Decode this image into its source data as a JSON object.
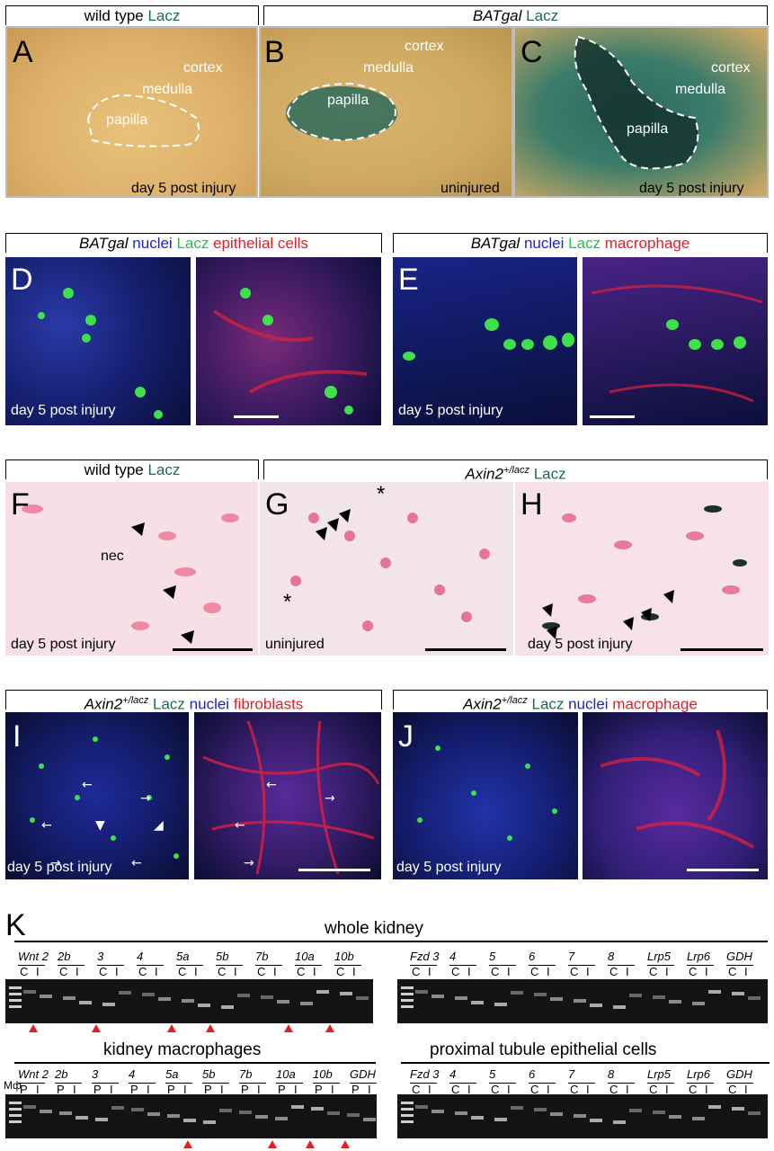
{
  "row1": {
    "header_left": {
      "prefix": "wild type",
      "stain": "Lacz"
    },
    "header_right": {
      "line": "BATgal",
      "stain": "Lacz"
    },
    "panels": [
      {
        "letter": "A",
        "cortex": "cortex",
        "medulla": "medulla",
        "papilla": "papilla",
        "caption": "day 5 post injury"
      },
      {
        "letter": "B",
        "cortex": "cortex",
        "medulla": "medulla",
        "papilla": "papilla",
        "caption": "uninjured"
      },
      {
        "letter": "C",
        "cortex": "cortex",
        "medulla": "medulla",
        "papilla": "papilla",
        "caption": "day 5 post injury"
      }
    ]
  },
  "row2": {
    "left": {
      "line": "BATgal",
      "c1": "nuclei",
      "c2": "Lacz",
      "c3": "epithelial cells",
      "letter": "D",
      "caption": "day 5 post injury"
    },
    "right": {
      "line": "BATgal",
      "c1": "nuclei",
      "c2": "Lacz",
      "c3": "macrophage",
      "letter": "E",
      "caption": "day 5 post injury"
    }
  },
  "row3": {
    "header_left": {
      "prefix": "wild type",
      "stain": "Lacz"
    },
    "header_right": {
      "line": "Axin2",
      "sup": "+/lacz",
      "stain": "Lacz"
    },
    "panels": [
      {
        "letter": "F",
        "label": "nec",
        "caption": "day 5 post injury"
      },
      {
        "letter": "G",
        "caption": "uninjured",
        "star": "*"
      },
      {
        "letter": "H",
        "caption": "day 5 post injury"
      }
    ]
  },
  "row4": {
    "left": {
      "line": "Axin2",
      "sup": "+/lacz",
      "c1": "Lacz",
      "c2": "nuclei",
      "c3": "fibroblasts",
      "letter": "I",
      "caption": "day 5 post injury"
    },
    "right": {
      "line": "Axin2",
      "sup": "+/lacz",
      "c1": "Lacz",
      "c2": "nuclei",
      "c3": "macrophage",
      "letter": "J",
      "caption": "day 5 post injury"
    }
  },
  "gels": {
    "letter": "K",
    "whole_kidney": "whole kidney",
    "kidney_macrophages": "kidney macrophages",
    "proximal_tubule": "proximal tubule epithelial cells",
    "wk_left_genes": [
      "Wnt 2",
      "2b",
      "3",
      "4",
      "5a",
      "5b",
      "7b",
      "10a",
      "10b"
    ],
    "fzd_genes": [
      "Fzd 3",
      "4",
      "5",
      "6",
      "7",
      "8",
      "Lrp5",
      "Lrp6",
      "GDH"
    ],
    "mac_genes": [
      "Wnt 2",
      "2b",
      "3",
      "4",
      "5a",
      "5b",
      "7b",
      "10a",
      "10b",
      "GDH"
    ],
    "lane_C": "C",
    "lane_I": "I",
    "lane_P": "P",
    "mphi": "Mф"
  },
  "colors": {
    "lacz_dark": "#1a6b4f",
    "lacz_bright": "#22c24a",
    "nuclei": "#2020d0",
    "red": "#e0202a"
  }
}
